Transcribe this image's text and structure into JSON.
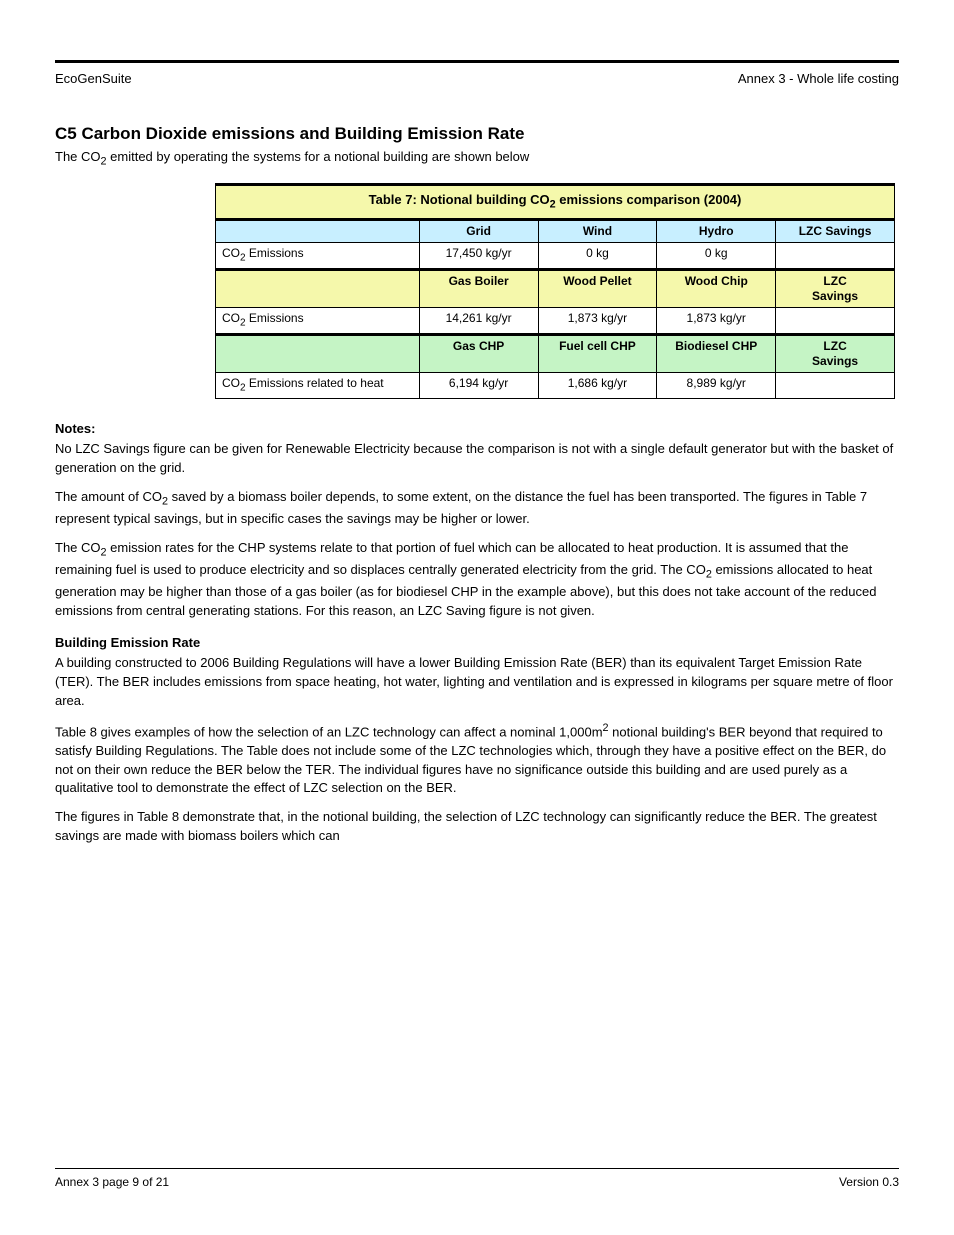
{
  "header": {
    "left": "EcoGenSuite",
    "right": "Annex 3 - Whole life costing"
  },
  "section": {
    "heading": "C5 Carbon Dioxide emissions and Building Emission Rate",
    "desc_1": "The CO",
    "desc_sub": "2",
    "desc_2": " emitted by operating the systems for a notional building are shown below"
  },
  "table": {
    "title_row": {
      "bg": "#f5f8ab",
      "label_prefix": "Table 7: Notional building CO",
      "label_sub": "2",
      "label_suffix": " emissions comparison (2004)"
    },
    "section_a": {
      "header_bg": "#c8efff",
      "columns": [
        "",
        "Grid",
        "Wind",
        "Hydro",
        "LZC Savings"
      ],
      "row": {
        "label_html": "CO<sub>2</sub> Emissions",
        "cells": [
          "17,450 kg/yr",
          "0 kg",
          "0 kg",
          ""
        ]
      }
    },
    "section_b": {
      "header_bg": "#f5f8ab",
      "columns": [
        "",
        "Gas Boiler",
        "Wood Pellet",
        "Wood Chip",
        "LZC\nSavings"
      ],
      "row": {
        "label_html": "CO<sub>2</sub> Emissions",
        "cells": [
          "14,261 kg/yr",
          "1,873 kg/yr",
          "1,873 kg/yr",
          ""
        ]
      }
    },
    "section_c": {
      "header_bg": "#c5f4c5",
      "columns": [
        "",
        "Gas CHP",
        "Fuel cell CHP",
        "Biodiesel CHP",
        "LZC\nSavings"
      ],
      "row": {
        "label_html": "CO<sub>2</sub> Emissions related to heat",
        "cells": [
          "6,194 kg/yr",
          "1,686 kg/yr",
          "8,989 kg/yr",
          ""
        ]
      }
    },
    "col_widths": [
      "30%",
      "17.5%",
      "17.5%",
      "17.5%",
      "17.5%"
    ]
  },
  "notes": {
    "heading": "Notes:",
    "para1": "No LZC Savings figure can be given for Renewable Electricity because the comparison is not with a single default generator but with the basket of generation on the grid.",
    "para2_a": "The amount of CO",
    "para2_sub": "2",
    "para2_b": " saved by a biomass boiler depends, to some extent, on the distance the fuel has been transported. The figures in Table 7 represent typical savings, but in specific cases the savings may be higher or lower.",
    "para3_a": "The CO",
    "para3_sub1": "2",
    "para3_b": " emission rates for the CHP systems relate to that portion of fuel which can be allocated to heat production. It is assumed that the remaining fuel is used to produce electricity and so displaces centrally generated electricity from the grid. The CO",
    "para3_sub2": "2",
    "para3_c": " emissions allocated to heat generation may be higher than those of a gas boiler (as for biodiesel CHP in the example above), but this does not take account of the reduced emissions from central generating stations. For this reason, an LZC Saving figure is not given.",
    "ber_heading": "Building Emission Rate",
    "para4": "A building constructed to 2006 Building Regulations will have a lower Building Emission Rate (BER) than its equivalent Target Emission Rate (TER). The BER includes emissions from space heating, hot water, lighting and ventilation and is expressed in kilograms per square metre of floor area.",
    "para5_a": "Table 8 gives examples of how the selection of an LZC technology can affect a nominal 1,000m",
    "para5_sup": "2",
    "para5_b": " notional building's BER beyond that required to satisfy Building Regulations. The Table does not include some of the LZC technologies which, through they have a positive effect on the BER, do not on their own reduce the BER below the TER. The individual figures have no significance outside this building and are used purely as a qualitative tool to demonstrate the effect of LZC selection on the BER.",
    "para6": "The figures in Table 8 demonstrate that, in the notional building, the selection of LZC technology can significantly reduce the BER. The greatest savings are made with biomass boilers which can"
  },
  "footer": {
    "left": "Annex 3 page 9 of 21",
    "right": "Version 0.3"
  }
}
